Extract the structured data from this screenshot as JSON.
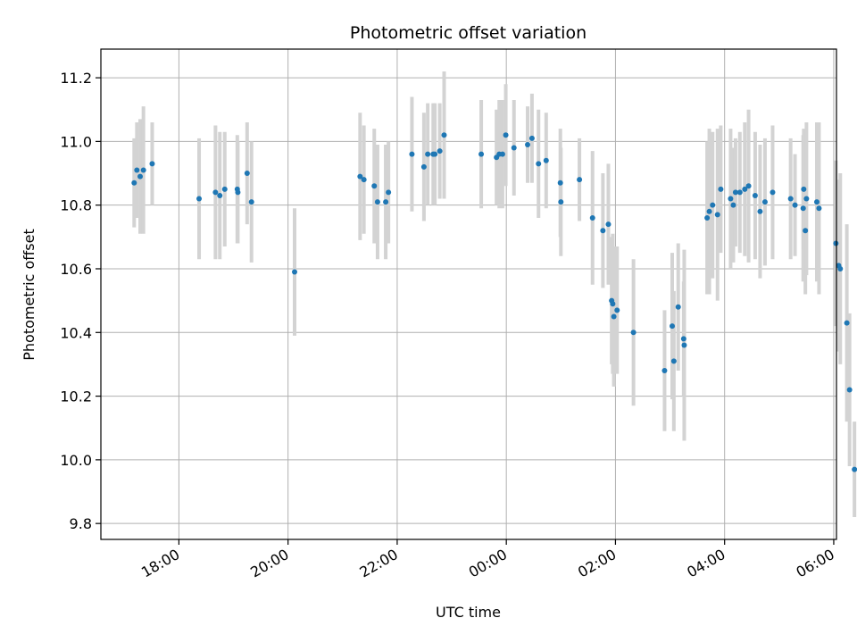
{
  "chart_data": {
    "type": "scatter",
    "title": "Photometric offset variation",
    "xlabel": "UTC time",
    "ylabel": "Photometric offset",
    "grid": true,
    "x_unit": "hours since 17:00 UTC",
    "xlim": [
      -0.43,
      13.05
    ],
    "ylim": [
      9.75,
      11.29
    ],
    "x_ticks": [
      {
        "value": 1,
        "label": "18:00"
      },
      {
        "value": 3,
        "label": "20:00"
      },
      {
        "value": 5,
        "label": "22:00"
      },
      {
        "value": 7,
        "label": "00:00"
      },
      {
        "value": 9,
        "label": "02:00"
      },
      {
        "value": 11,
        "label": "04:00"
      },
      {
        "value": 13,
        "label": "06:00"
      }
    ],
    "y_ticks": [
      {
        "value": 9.8,
        "label": "9.8"
      },
      {
        "value": 10.0,
        "label": "10.0"
      },
      {
        "value": 10.2,
        "label": "10.2"
      },
      {
        "value": 10.4,
        "label": "10.4"
      },
      {
        "value": 10.6,
        "label": "10.6"
      },
      {
        "value": 10.8,
        "label": "10.8"
      },
      {
        "value": 11.0,
        "label": "11.0"
      },
      {
        "value": 11.2,
        "label": "11.2"
      }
    ],
    "series": [
      {
        "name": "Photometric offset",
        "marker_color": "#1f77b4",
        "errorbar_color": "#d3d3d3",
        "x": [
          0.18,
          0.23,
          0.29,
          0.35,
          0.51,
          1.37,
          1.67,
          1.75,
          1.84,
          2.07,
          2.08,
          2.25,
          2.33,
          3.12,
          4.32,
          4.39,
          4.58,
          4.64,
          4.79,
          4.84,
          5.27,
          5.49,
          5.56,
          5.66,
          5.69,
          5.78,
          5.86,
          6.54,
          6.82,
          6.87,
          6.93,
          6.99,
          7.14,
          7.39,
          7.47,
          7.59,
          7.73,
          7.99,
          8.0,
          8.34,
          8.58,
          8.77,
          8.87,
          8.93,
          8.95,
          8.97,
          9.03,
          9.33,
          9.9,
          10.04,
          10.07,
          10.15,
          10.25,
          10.26,
          10.68,
          10.72,
          10.78,
          10.87,
          10.93,
          11.11,
          11.16,
          11.2,
          11.28,
          11.37,
          11.44,
          11.56,
          11.65,
          11.74,
          11.88,
          12.21,
          12.29,
          12.44,
          12.45,
          12.48,
          12.5,
          12.69,
          12.73,
          13.04,
          13.09,
          13.12,
          13.24,
          13.29,
          13.38
        ],
        "y": [
          10.87,
          10.91,
          10.89,
          10.91,
          10.93,
          10.82,
          10.84,
          10.83,
          10.85,
          10.85,
          10.84,
          10.9,
          10.81,
          10.59,
          10.89,
          10.88,
          10.86,
          10.81,
          10.81,
          10.84,
          10.96,
          10.92,
          10.96,
          10.96,
          10.96,
          10.97,
          11.02,
          10.96,
          10.95,
          10.96,
          10.96,
          11.02,
          10.98,
          10.99,
          11.01,
          10.93,
          10.94,
          10.87,
          10.81,
          10.88,
          10.76,
          10.72,
          10.74,
          10.5,
          10.49,
          10.45,
          10.47,
          10.4,
          10.28,
          10.42,
          10.31,
          10.48,
          10.38,
          10.36,
          10.76,
          10.78,
          10.8,
          10.77,
          10.85,
          10.82,
          10.8,
          10.84,
          10.84,
          10.85,
          10.86,
          10.83,
          10.78,
          10.81,
          10.84,
          10.82,
          10.8,
          10.79,
          10.85,
          10.72,
          10.82,
          10.81,
          10.79,
          10.68,
          10.61,
          10.6,
          10.43,
          10.22,
          9.97
        ],
        "err": [
          0.14,
          0.15,
          0.18,
          0.2,
          0.13,
          0.19,
          0.21,
          0.2,
          0.18,
          0.17,
          0.16,
          0.16,
          0.19,
          0.2,
          0.2,
          0.17,
          0.18,
          0.18,
          0.18,
          0.16,
          0.18,
          0.17,
          0.16,
          0.16,
          0.16,
          0.15,
          0.2,
          0.17,
          0.15,
          0.17,
          0.17,
          0.16,
          0.15,
          0.12,
          0.14,
          0.17,
          0.15,
          0.17,
          0.17,
          0.13,
          0.21,
          0.18,
          0.19,
          0.2,
          0.22,
          0.22,
          0.2,
          0.23,
          0.19,
          0.23,
          0.22,
          0.2,
          0.18,
          0.3,
          0.24,
          0.26,
          0.23,
          0.27,
          0.2,
          0.22,
          0.18,
          0.17,
          0.19,
          0.21,
          0.24,
          0.2,
          0.21,
          0.2,
          0.21,
          0.19,
          0.16,
          0.23,
          0.19,
          0.2,
          0.24,
          0.25,
          0.27,
          0.26,
          0.27,
          0.3,
          0.31,
          0.24,
          0.15
        ]
      }
    ]
  }
}
